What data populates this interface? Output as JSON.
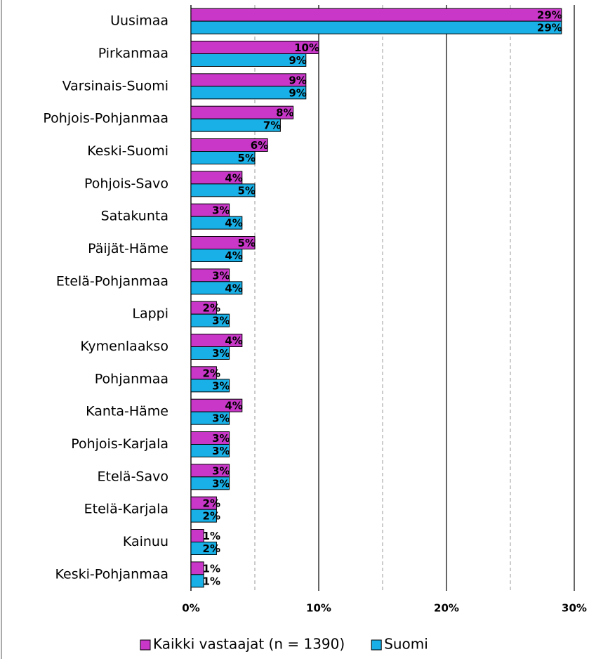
{
  "chart_data": {
    "type": "bar",
    "orientation": "horizontal",
    "categories": [
      "Uusimaa",
      "Pirkanmaa",
      "Varsinais-Suomi",
      "Pohjois-Pohjanmaa",
      "Keski-Suomi",
      "Pohjois-Savo",
      "Satakunta",
      "Päijät-Häme",
      "Etelä-Pohjanmaa",
      "Lappi",
      "Kymenlaakso",
      "Pohjanmaa",
      "Kanta-Häme",
      "Pohjois-Karjala",
      "Etelä-Savo",
      "Etelä-Karjala",
      "Kainuu",
      "Keski-Pohjanmaa"
    ],
    "series": [
      {
        "name": "Kaikki vastaajat (n = 1390)",
        "color": "#c837c8",
        "values": [
          29,
          10,
          9,
          8,
          6,
          4,
          3,
          5,
          3,
          2,
          4,
          2,
          4,
          3,
          3,
          2,
          1,
          1
        ],
        "value_labels": [
          "29%",
          "10%",
          "9%",
          "8%",
          "6%",
          "4%",
          "3%",
          "5%",
          "3%",
          "2%",
          "4%",
          "2%",
          "4%",
          "3%",
          "3%",
          "2%",
          "1%",
          "1%"
        ]
      },
      {
        "name": "Suomi",
        "color": "#18b0e6",
        "values": [
          29,
          9,
          9,
          7,
          5,
          5,
          4,
          4,
          4,
          3,
          3,
          3,
          3,
          3,
          3,
          2,
          2,
          1
        ],
        "value_labels": [
          "29%",
          "9%",
          "9%",
          "7%",
          "5%",
          "5%",
          "4%",
          "4%",
          "4%",
          "3%",
          "3%",
          "3%",
          "3%",
          "3%",
          "3%",
          "2%",
          "2%",
          "1%"
        ]
      }
    ],
    "xlim": [
      0,
      30
    ],
    "xticks": [
      {
        "value": 0,
        "label": "0%"
      },
      {
        "value": 10,
        "label": "10%"
      },
      {
        "value": 20,
        "label": "20%"
      },
      {
        "value": 30,
        "label": "30%"
      }
    ],
    "x_minor_grid": [
      5,
      15,
      25
    ],
    "grid": true,
    "legend": "bottom"
  }
}
